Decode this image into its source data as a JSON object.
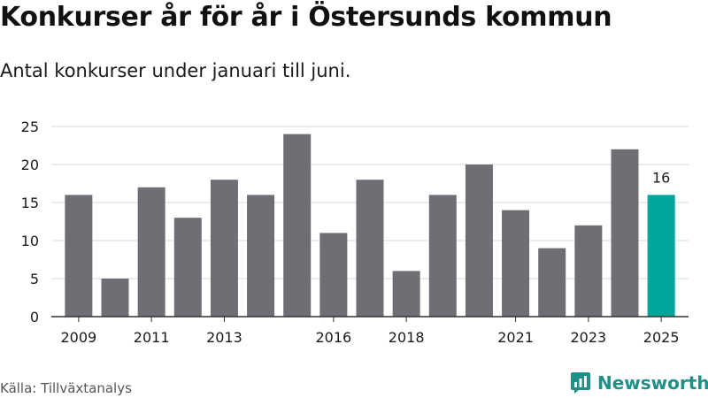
{
  "header": {
    "title": "Konkurser år för år i Östersunds kommun",
    "subtitle": "Antal konkurser under januari till juni."
  },
  "footer": {
    "source": "Källa: Tillväxtanalys",
    "brand": "Newsworthy"
  },
  "colors": {
    "bar": "#6f6e74",
    "highlight": "#00a59b",
    "grid": "#d9d9d9",
    "axis": "#333333",
    "brand": "#1f8f8a"
  },
  "chart_data": {
    "type": "bar",
    "categories": [
      "2009",
      "2010",
      "2011",
      "2012",
      "2013",
      "2014",
      "2015",
      "2016",
      "2017",
      "2018",
      "2019",
      "2020",
      "2021",
      "2022",
      "2023",
      "2024",
      "2025"
    ],
    "x_tick_labels": [
      "2009",
      "2011",
      "2013",
      "2016",
      "2018",
      "2021",
      "2023",
      "2025"
    ],
    "values": [
      16,
      5,
      17,
      13,
      18,
      16,
      24,
      11,
      18,
      6,
      16,
      20,
      14,
      9,
      12,
      22,
      16
    ],
    "highlight_category": "2025",
    "annotations": [
      {
        "category": "2025",
        "text": "16"
      }
    ],
    "yticks": [
      0,
      5,
      10,
      15,
      20,
      25
    ],
    "ylim": [
      0,
      25
    ],
    "grid": true,
    "legend": "none",
    "title": "Konkurser år för år i Östersunds kommun",
    "subtitle": "Antal konkurser under januari till juni.",
    "xlabel": "",
    "ylabel": ""
  }
}
